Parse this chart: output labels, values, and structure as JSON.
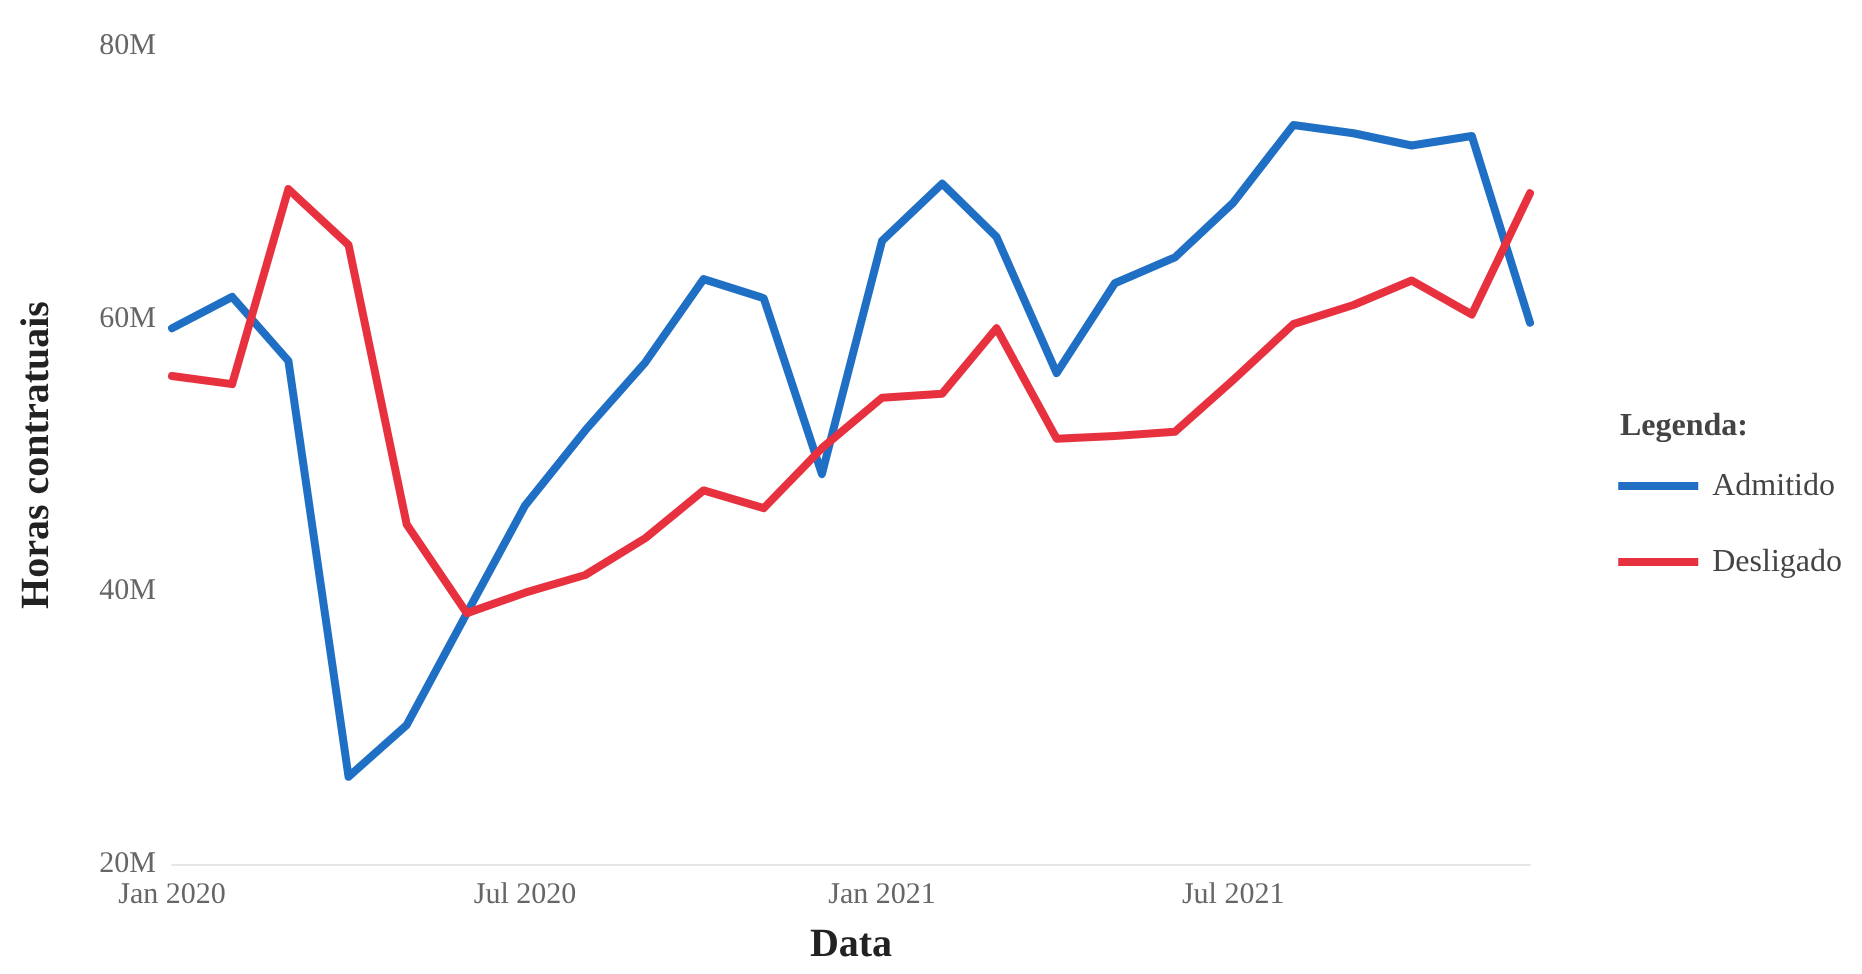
{
  "chart_data": {
    "type": "line",
    "xlabel": "Data",
    "ylabel": "Horas contratuais",
    "legend_title": "Legenda:",
    "legend": "right",
    "grid": false,
    "marker": "none",
    "line_style": "solid",
    "x": [
      "2020-01",
      "2020-02",
      "2020-03",
      "2020-04",
      "2020-05",
      "2020-06",
      "2020-07",
      "2020-08",
      "2020-09",
      "2020-10",
      "2020-11",
      "2020-12",
      "2021-01",
      "2021-02",
      "2021-03",
      "2021-04",
      "2021-05",
      "2021-06",
      "2021-07",
      "2021-08",
      "2021-09",
      "2021-10",
      "2021-11",
      "2021-12"
    ],
    "xlim": [
      "2020-01",
      "2021-12"
    ],
    "xticks": [
      {
        "value": "2020-01",
        "label": "Jan 2020"
      },
      {
        "value": "2020-07",
        "label": "Jul 2020"
      },
      {
        "value": "2021-01",
        "label": "Jan 2021"
      },
      {
        "value": "2021-07",
        "label": "Jul 2021"
      }
    ],
    "ylim": [
      20,
      80
    ],
    "yticks": [
      {
        "value": 20,
        "label": "20M"
      },
      {
        "value": 40,
        "label": "40M"
      },
      {
        "value": 60,
        "label": "60M"
      },
      {
        "value": 80,
        "label": "80M"
      }
    ],
    "series": [
      {
        "name": "Admitido",
        "color": "#1f6fc5",
        "values": [
          59.3,
          61.6,
          56.9,
          26.4,
          30.2,
          38.4,
          46.3,
          51.8,
          56.8,
          62.9,
          61.5,
          48.6,
          65.7,
          69.9,
          66.0,
          56.0,
          62.6,
          64.5,
          68.5,
          74.2,
          73.6,
          72.7,
          73.4,
          59.7
        ]
      },
      {
        "name": "Desligado",
        "color": "#e8313f",
        "values": [
          55.8,
          55.2,
          69.5,
          65.4,
          44.9,
          38.4,
          39.9,
          41.2,
          43.9,
          47.4,
          46.1,
          50.5,
          54.2,
          54.5,
          59.3,
          51.2,
          51.4,
          51.7,
          55.5,
          59.6,
          61.0,
          62.8,
          60.3,
          69.2
        ]
      }
    ]
  }
}
